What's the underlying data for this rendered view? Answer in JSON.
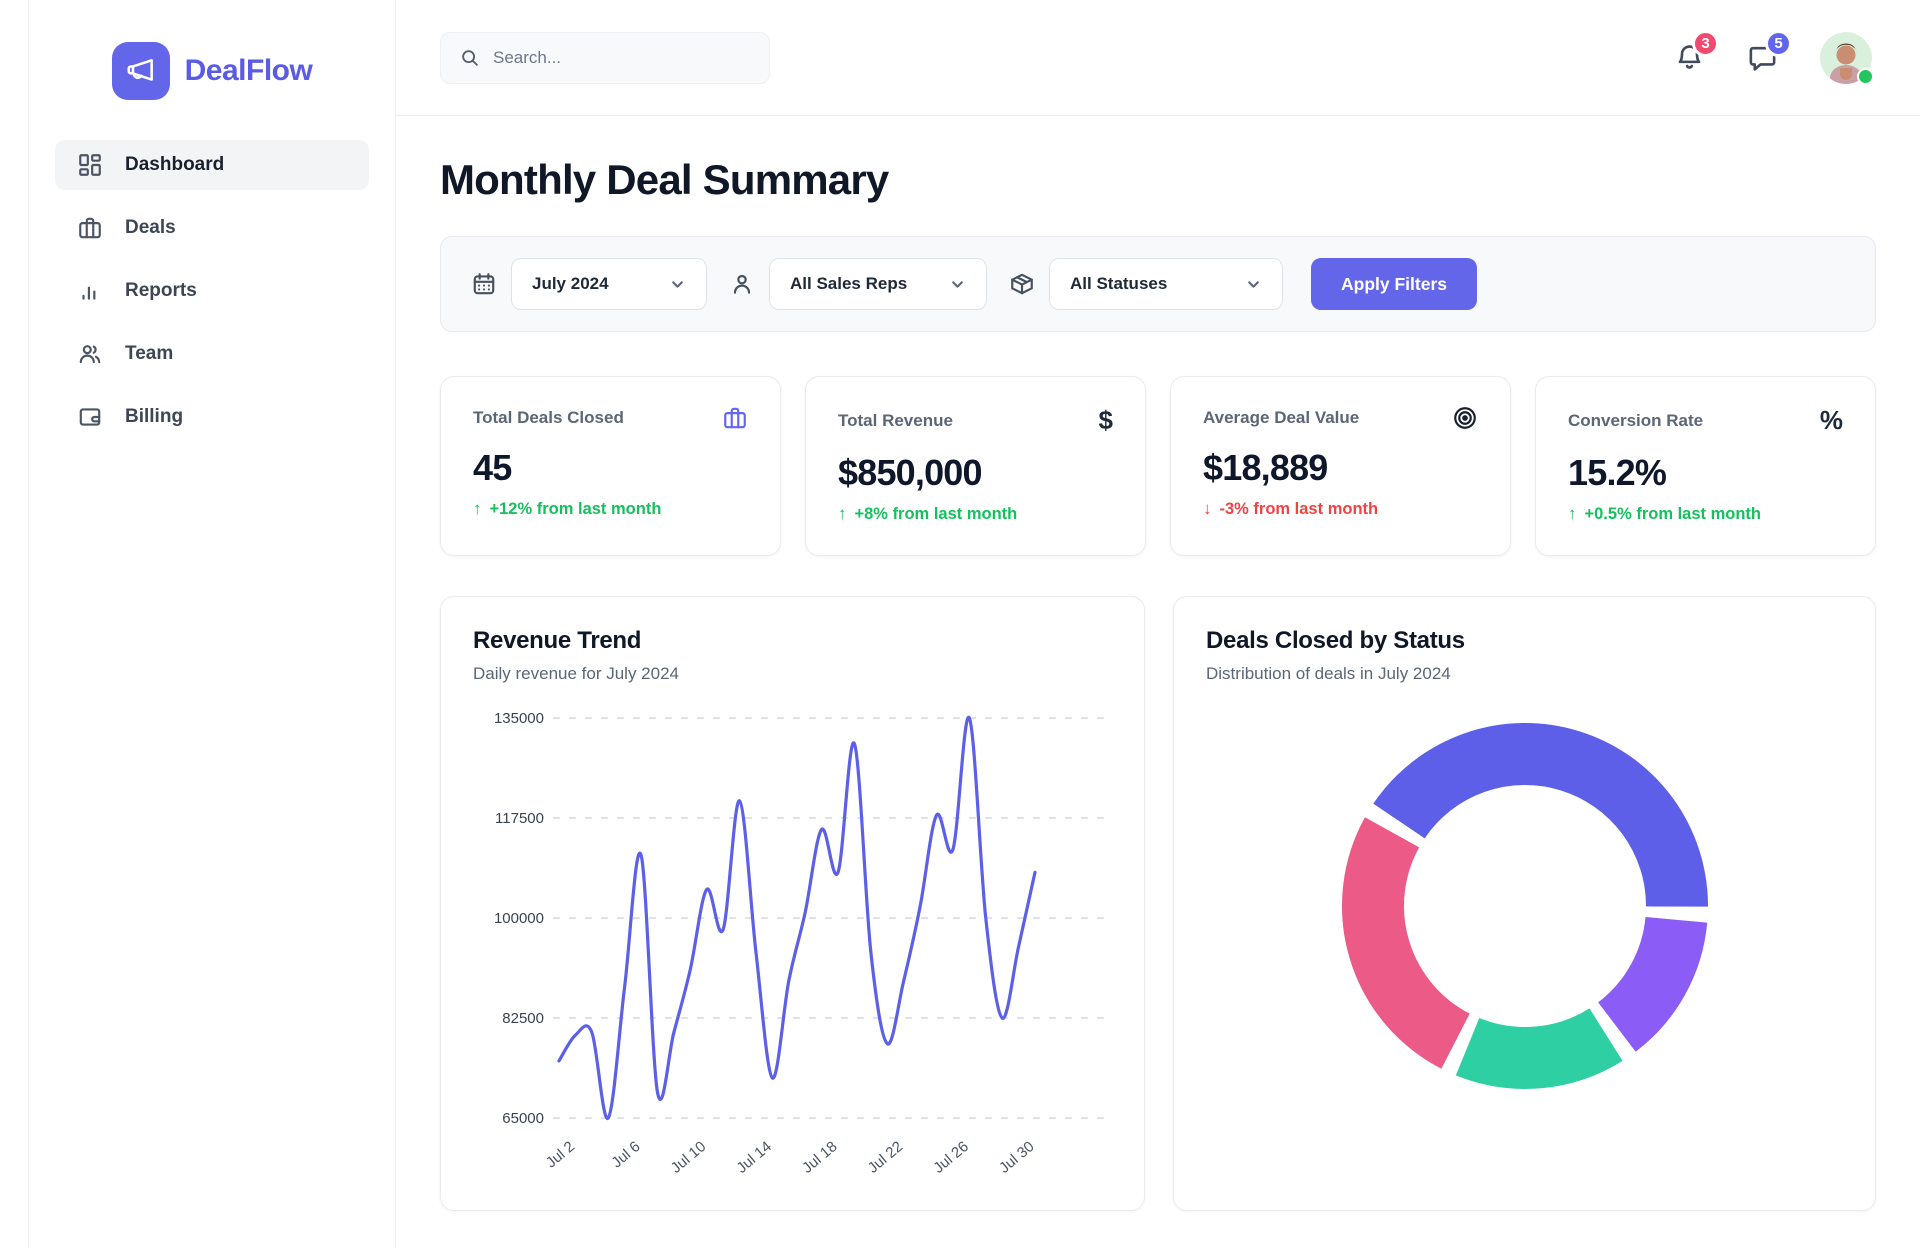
{
  "brand": {
    "name": "DealFlow"
  },
  "sidebar": {
    "items": [
      {
        "label": "Dashboard",
        "icon": "dashboard-grid",
        "active": true
      },
      {
        "label": "Deals",
        "icon": "briefcase",
        "active": false
      },
      {
        "label": "Reports",
        "icon": "bar-chart",
        "active": false
      },
      {
        "label": "Team",
        "icon": "users",
        "active": false
      },
      {
        "label": "Billing",
        "icon": "wallet",
        "active": false
      }
    ]
  },
  "topbar": {
    "search_placeholder": "Search...",
    "notification_count": "3",
    "message_count": "5"
  },
  "page": {
    "title": "Monthly Deal Summary"
  },
  "filters": {
    "month": "July 2024",
    "sales_rep": "All Sales Reps",
    "status": "All Statuses",
    "apply_label": "Apply Filters"
  },
  "kpis": [
    {
      "label": "Total Deals Closed",
      "icon": "briefcase",
      "value": "45",
      "delta": "+12% from last month",
      "direction": "up"
    },
    {
      "label": "Total Revenue",
      "icon": "dollar-sign",
      "value": "$850,000",
      "delta": "+8% from last month",
      "direction": "up"
    },
    {
      "label": "Average Deal Value",
      "icon": "target",
      "value": "$18,889",
      "delta": "-3% from last month",
      "direction": "down"
    },
    {
      "label": "Conversion Rate",
      "icon": "percent",
      "value": "15.2%",
      "delta": "+0.5% from last month",
      "direction": "up"
    }
  ],
  "charts": {
    "revenue": {
      "title": "Revenue Trend",
      "subtitle": "Daily revenue for July 2024"
    },
    "status": {
      "title": "Deals Closed by Status",
      "subtitle": "Distribution of deals in July 2024"
    }
  },
  "colors": {
    "accent": "#6466e9",
    "positive": "#15c05d",
    "negative": "#ef4444",
    "line": "#5c60e8",
    "grid": "#d5d9e0",
    "donut": [
      "#5d5fe8",
      "#8b5cf6",
      "#2dcfa3",
      "#ec5a87"
    ]
  },
  "chart_data": [
    {
      "type": "line",
      "title": "Revenue Trend",
      "subtitle": "Daily revenue for July 2024",
      "xlabel": "",
      "ylabel": "",
      "ylim": [
        65000,
        135000
      ],
      "yticks": [
        135000,
        117500,
        100000,
        82500,
        65000
      ],
      "grid": "dashed-horizontal",
      "legend": "none",
      "line_color": "#5c60e8",
      "x": [
        "Jul 1",
        "Jul 2",
        "Jul 3",
        "Jul 4",
        "Jul 5",
        "Jul 6",
        "Jul 7",
        "Jul 8",
        "Jul 9",
        "Jul 10",
        "Jul 11",
        "Jul 12",
        "Jul 13",
        "Jul 14",
        "Jul 15",
        "Jul 16",
        "Jul 17",
        "Jul 18",
        "Jul 19",
        "Jul 20",
        "Jul 21",
        "Jul 22",
        "Jul 23",
        "Jul 24",
        "Jul 25",
        "Jul 26",
        "Jul 27",
        "Jul 28",
        "Jul 29",
        "Jul 30"
      ],
      "x_ticks_shown": [
        "Jul 2",
        "Jul 6",
        "Jul 10",
        "Jul 14",
        "Jul 18",
        "Jul 22",
        "Jul 26",
        "Jul 30"
      ],
      "values": [
        75000,
        79500,
        80000,
        65000,
        88000,
        111000,
        69500,
        80000,
        91000,
        105000,
        98000,
        120500,
        94000,
        72000,
        89000,
        101000,
        115500,
        108000,
        130500,
        94000,
        78000,
        89000,
        102000,
        118000,
        112000,
        135000,
        100000,
        82500,
        95000,
        108000
      ]
    },
    {
      "type": "pie",
      "donut": true,
      "title": "Deals Closed by Status",
      "subtitle": "Distribution of deals in July 2024",
      "legend": "none",
      "labels_shown": false,
      "start_angle_deg": 146,
      "gap_deg": 5,
      "segments": [
        {
          "name": "indigo-segment",
          "value": 43,
          "color": "#5d5fe8"
        },
        {
          "name": "purple-segment",
          "value": 14,
          "color": "#8b5cf6"
        },
        {
          "name": "teal-segment",
          "value": 16,
          "color": "#2dcfa3"
        },
        {
          "name": "pink-segment",
          "value": 27,
          "color": "#ec5a87"
        }
      ]
    }
  ]
}
